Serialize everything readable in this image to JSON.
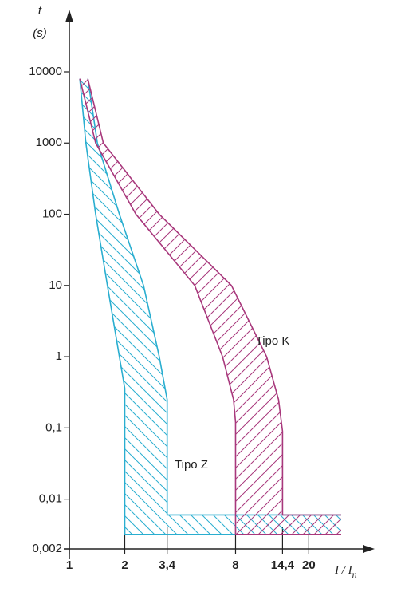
{
  "chart_data": {
    "type": "band",
    "ylabel": "t",
    "yunit": "(s)",
    "xlabel": "I / I",
    "xlabel_sub": "n",
    "xscale": "log",
    "yscale": "log",
    "xlim": [
      1,
      30
    ],
    "ylim": [
      0.002,
      10000
    ],
    "xticks": [
      1,
      2,
      {
        "value": 3.4,
        "label": "3,4"
      },
      8,
      {
        "value": 14.4,
        "label": "14,4"
      },
      20
    ],
    "xtick_colors": [
      "#222222",
      "#2aaed0",
      "#2aaed0",
      "#a8387c",
      "#a8387c",
      "#222222"
    ],
    "yticks": [
      {
        "value": 0.002,
        "label": "0,002"
      },
      {
        "value": 0.01,
        "label": "0,01"
      },
      {
        "value": 0.1,
        "label": "0,1"
      },
      1,
      10,
      100,
      1000,
      10000
    ],
    "series": [
      {
        "name": "Tipo Z",
        "color": "#2aaed0",
        "hatch": "back",
        "min_curve": {
          "x": [
            1.14,
            1.23,
            1.39,
            1.61,
            1.87,
            2,
            2,
            30
          ],
          "y": [
            8000,
            1000,
            100,
            10,
            1,
            0.36,
            0.0032,
            0.0032
          ]
        },
        "max_curve": {
          "x": [
            1.26,
            1.42,
            1.87,
            2.53,
            3.08,
            3.4,
            3.4,
            30
          ],
          "y": [
            8000,
            1000,
            100,
            10,
            1,
            0.25,
            0.006,
            0.006
          ]
        }
      },
      {
        "name": "Tipo K",
        "color": "#a8387c",
        "hatch": "forward",
        "min_curve": {
          "x": [
            1.14,
            1.39,
            2.3,
            4.8,
            6.8,
            7.8,
            8,
            8,
            30
          ],
          "y": [
            8000,
            1000,
            100,
            10,
            1,
            0.25,
            0.12,
            0.0032,
            0.0032
          ]
        },
        "max_curve": {
          "x": [
            1.26,
            1.53,
            3.08,
            7.6,
            11.8,
            13.7,
            14.4,
            14.4,
            30
          ],
          "y": [
            8000,
            1000,
            100,
            10,
            1,
            0.25,
            0.09,
            0.006,
            0.006
          ]
        }
      }
    ]
  }
}
